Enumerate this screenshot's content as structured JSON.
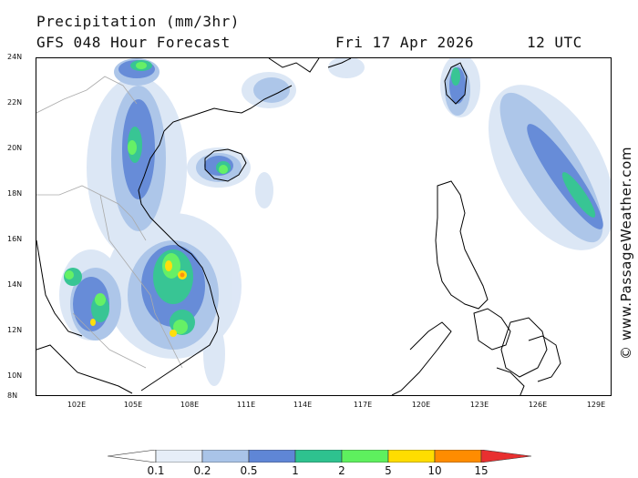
{
  "header": {
    "title": "Precipitation (mm/3hr)",
    "subtitle": "GFS 048 Hour Forecast",
    "date": "Fri 17 Apr 2026",
    "time": "12 UTC"
  },
  "axes": {
    "lat_labels": [
      "24N",
      "22N",
      "20N",
      "18N",
      "16N",
      "14N",
      "12N",
      "10N",
      "8N"
    ],
    "lon_labels": [
      "102E",
      "105E",
      "108E",
      "111E",
      "114E",
      "117E",
      "120E",
      "123E",
      "126E",
      "129E"
    ]
  },
  "credit": "© www.PassageWeather.com",
  "legend": {
    "ticks": [
      "0.1",
      "0.2",
      "0.5",
      "1",
      "2",
      "5",
      "10",
      "15"
    ],
    "colors": [
      "#ffffff",
      "#e6eef8",
      "#a9c4e8",
      "#5f86d6",
      "#2ec28f",
      "#5ef05e",
      "#ffdd00",
      "#ff8c00",
      "#e83030"
    ]
  },
  "colors": {
    "coast": "#000000",
    "border": "#aaaaaa"
  }
}
